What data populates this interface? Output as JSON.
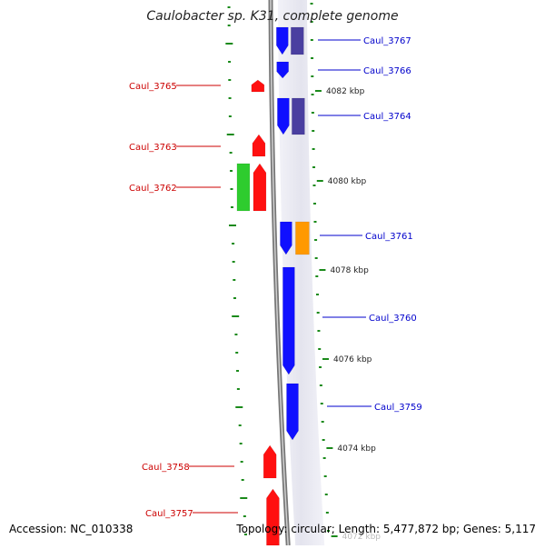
{
  "title": "Caulobacter sp. K31, complete genome",
  "footer": {
    "accession": "Accession: NC_010338",
    "topology": "Topology: circular; Length: 5,477,872 bp; Genes: 5,117"
  },
  "colors": {
    "forward_strand": "#1010ff",
    "forward_strand_alt": "#4a3fa0",
    "reverse_strand": "#ff1010",
    "green_feature": "#2ecc2e",
    "orange_feature": "#ff9900",
    "tick": "#1a8a1a",
    "label_forward": "#0000cc",
    "label_reverse": "#cc0000",
    "backbone": "#888888"
  },
  "kbp_markers": [
    "4082 kbp",
    "4080 kbp",
    "4078 kbp",
    "4076 kbp",
    "4074 kbp",
    "4072 kbp"
  ],
  "genes": [
    {
      "id": "Caul_3767",
      "strand": "forward"
    },
    {
      "id": "Caul_3766",
      "strand": "forward"
    },
    {
      "id": "Caul_3765",
      "strand": "reverse"
    },
    {
      "id": "Caul_3764",
      "strand": "forward"
    },
    {
      "id": "Caul_3763",
      "strand": "reverse"
    },
    {
      "id": "Caul_3762",
      "strand": "reverse"
    },
    {
      "id": "Caul_3761",
      "strand": "forward"
    },
    {
      "id": "Caul_3760",
      "strand": "forward"
    },
    {
      "id": "Caul_3759",
      "strand": "forward"
    },
    {
      "id": "Caul_3758",
      "strand": "reverse"
    },
    {
      "id": "Caul_3757",
      "strand": "reverse"
    }
  ]
}
